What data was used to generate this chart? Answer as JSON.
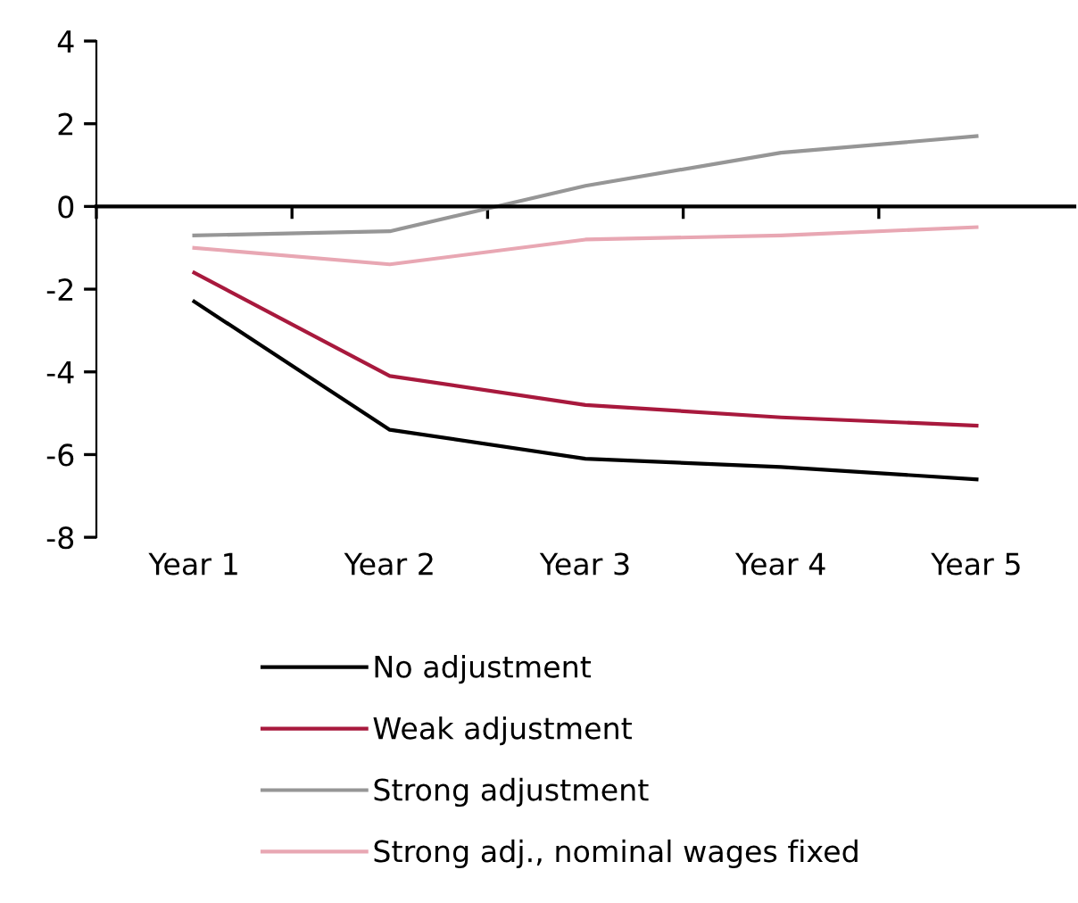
{
  "chart_data": {
    "type": "line",
    "categories": [
      "Year 1",
      "Year 2",
      "Year 3",
      "Year 4",
      "Year 5"
    ],
    "series": [
      {
        "name": "No adjustment",
        "color": "#000000",
        "values": [
          -2.3,
          -5.4,
          -6.1,
          -6.3,
          -6.6
        ]
      },
      {
        "name": "Weak adjustment",
        "color": "#a8193d",
        "values": [
          -1.6,
          -4.1,
          -4.8,
          -5.1,
          -5.3
        ]
      },
      {
        "name": "Strong adjustment",
        "color": "#969696",
        "values": [
          -0.7,
          -0.6,
          0.5,
          1.3,
          1.7
        ]
      },
      {
        "name": "Strong adj., nominal wages fixed",
        "color": "#e8a7b3",
        "values": [
          -1.0,
          -1.4,
          -0.8,
          -0.7,
          -0.5
        ]
      }
    ],
    "ylim": [
      -8,
      4
    ],
    "yticks": [
      -8,
      -6,
      -4,
      -2,
      0,
      2,
      4
    ],
    "legend": "bottom"
  }
}
